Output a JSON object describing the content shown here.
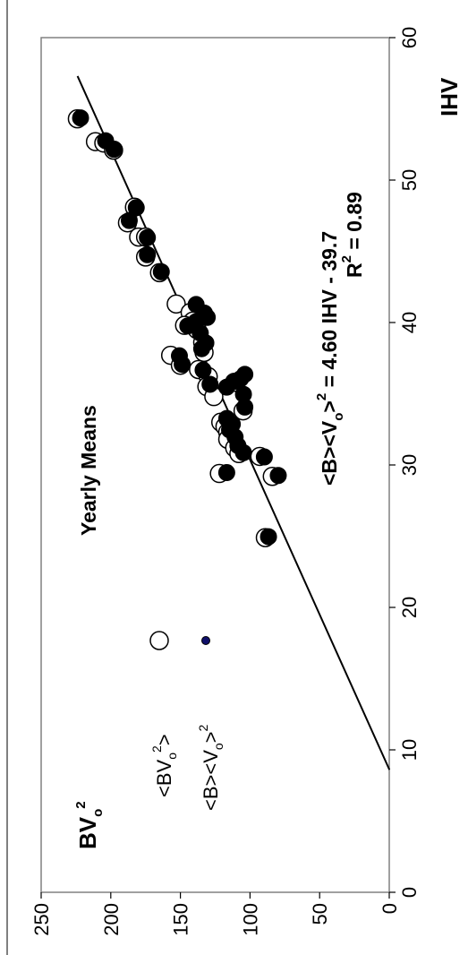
{
  "chart_data": {
    "type": "scatter",
    "orientation": "rotated 90° counter-clockwise",
    "x_axis": {
      "label": "IHV",
      "range": [
        0,
        60
      ],
      "ticks": [
        "0",
        "10",
        "20",
        "30",
        "40",
        "50",
        "60"
      ],
      "tick_values": [
        0,
        10,
        20,
        30,
        40,
        50,
        60
      ]
    },
    "y_axis": {
      "label": "BVo2",
      "label_main": "BV",
      "label_sub": "o",
      "label_sup": "2",
      "range": [
        0,
        250
      ],
      "ticks": [
        "0",
        "50",
        "100",
        "150",
        "200",
        "250"
      ],
      "tick_values": [
        0,
        50,
        100,
        150,
        200,
        250
      ]
    },
    "grid": false,
    "annotation_title": "Yearly Means",
    "legend": {
      "placement": "upper-left",
      "entries": [
        {
          "text": "<BVo2>",
          "text_main": "<BV",
          "text_sub": "o",
          "text_sup": "2",
          "text_end": ">",
          "marker": "open-circle"
        },
        {
          "text": "<B><Vo>2",
          "text_main": "<B><V",
          "text_sub": "o",
          "text_mid": ">",
          "text_sup": "2",
          "marker": "filled-circle-small"
        }
      ]
    },
    "fit": {
      "equation": "<B><Vo>2 = 4.60 IHV - 39.7",
      "equation_main": "<B><V",
      "equation_sub": "o",
      "equation_mid": ">",
      "equation_sup": "2",
      "equation_end": " = 4.60 IHV - 39.7",
      "r2": "R2 = 0.89",
      "r2_main": "R",
      "r2_sup": "2",
      "r2_end": " = 0.89",
      "slope": 4.6,
      "intercept": -39.7,
      "x_range": [
        8.6,
        57.3
      ]
    },
    "series": [
      {
        "name": "<BVo2>",
        "marker": "open",
        "points": [
          [
            54.3,
            224
          ],
          [
            52.7,
            211
          ],
          [
            52.6,
            205
          ],
          [
            52.1,
            198
          ],
          [
            48.1,
            183
          ],
          [
            47.0,
            188
          ],
          [
            46.0,
            180
          ],
          [
            46.0,
            175
          ],
          [
            44.6,
            175
          ],
          [
            43.5,
            165
          ],
          [
            41.3,
            153
          ],
          [
            40.7,
            143
          ],
          [
            40.1,
            141
          ],
          [
            39.8,
            147
          ],
          [
            39.5,
            138
          ],
          [
            38.6,
            134
          ],
          [
            37.9,
            133
          ],
          [
            37.7,
            157
          ],
          [
            37.0,
            150
          ],
          [
            36.7,
            137
          ],
          [
            36.2,
            130
          ],
          [
            35.8,
            111
          ],
          [
            35.5,
            131
          ],
          [
            34.8,
            126
          ],
          [
            33.8,
            105
          ],
          [
            33.0,
            121
          ],
          [
            32.7,
            118
          ],
          [
            32.3,
            116
          ],
          [
            31.8,
            116
          ],
          [
            31.2,
            111
          ],
          [
            30.8,
            108
          ],
          [
            30.6,
            93
          ],
          [
            29.4,
            122
          ],
          [
            29.2,
            84
          ],
          [
            24.9,
            89
          ]
        ]
      },
      {
        "name": "<B><Vo>2",
        "marker": "filled",
        "points": [
          [
            54.3,
            223
          ],
          [
            52.7,
            205
          ],
          [
            52.1,
            199
          ],
          [
            48.0,
            183
          ],
          [
            47.1,
            188
          ],
          [
            45.9,
            175
          ],
          [
            44.7,
            175
          ],
          [
            43.5,
            165
          ],
          [
            41.2,
            140
          ],
          [
            40.6,
            134
          ],
          [
            40.3,
            132
          ],
          [
            40.0,
            140
          ],
          [
            39.7,
            146
          ],
          [
            39.2,
            137
          ],
          [
            38.5,
            133
          ],
          [
            38.1,
            136
          ],
          [
            37.6,
            152
          ],
          [
            37.0,
            150
          ],
          [
            36.6,
            135
          ],
          [
            36.3,
            105
          ],
          [
            36.0,
            108
          ],
          [
            35.8,
            113
          ],
          [
            35.6,
            130
          ],
          [
            35.4,
            118
          ],
          [
            34.9,
            106
          ],
          [
            34.0,
            105
          ],
          [
            33.2,
            118
          ],
          [
            32.8,
            114
          ],
          [
            32.4,
            116
          ],
          [
            31.9,
            112
          ],
          [
            31.3,
            110
          ],
          [
            30.8,
            106
          ],
          [
            30.5,
            91
          ],
          [
            29.4,
            118
          ],
          [
            29.2,
            81
          ],
          [
            24.9,
            88
          ]
        ]
      }
    ]
  }
}
